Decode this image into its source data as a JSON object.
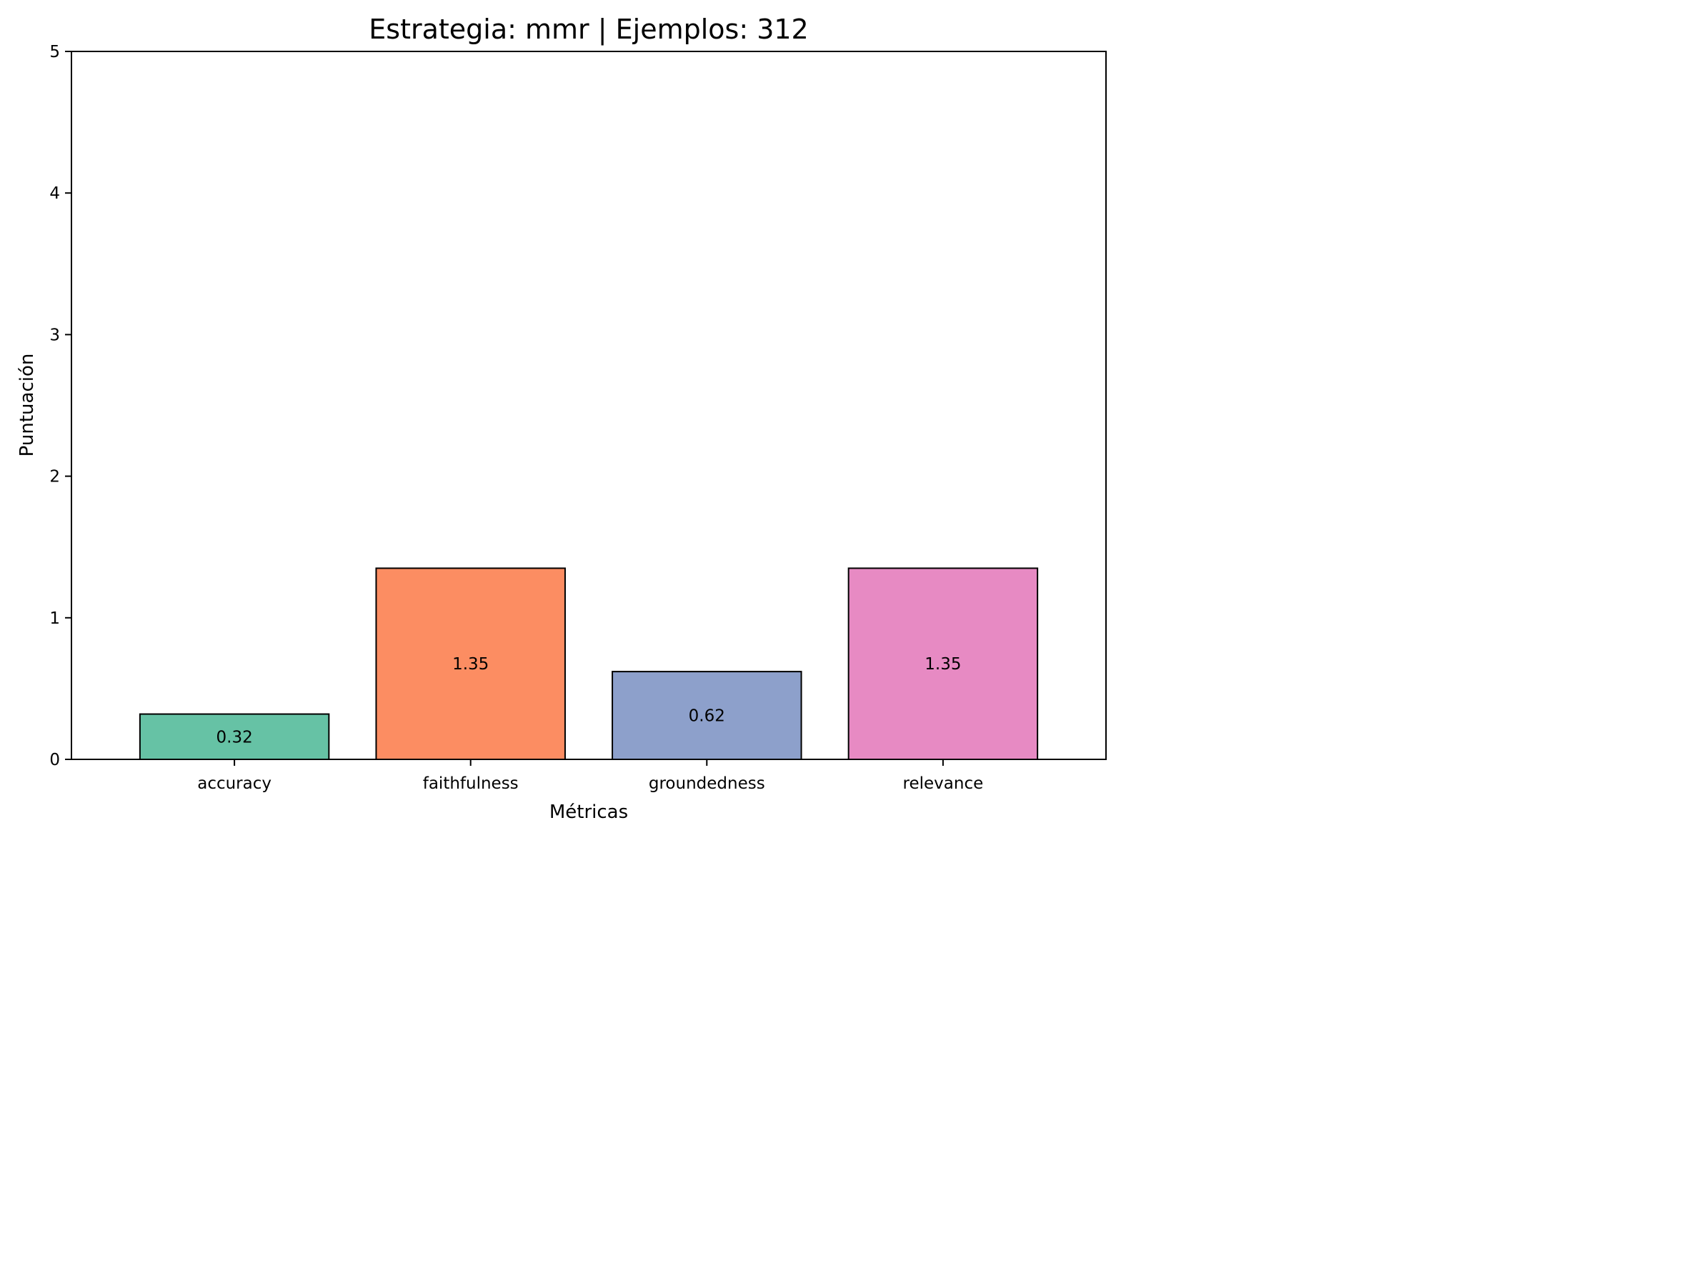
{
  "chart_data": {
    "type": "bar",
    "title": "Estrategia: mmr | Ejemplos: 312",
    "xlabel": "Métricas",
    "ylabel": "Puntuación",
    "categories": [
      "accuracy",
      "faithfulness",
      "groundedness",
      "relevance"
    ],
    "values": [
      0.32,
      1.35,
      0.62,
      1.35
    ],
    "value_labels": [
      "0.32",
      "1.35",
      "0.62",
      "1.35"
    ],
    "colors": [
      "#66c2a5",
      "#fc8d62",
      "#8da0cb",
      "#e78ac3"
    ],
    "ylim": [
      0,
      5
    ],
    "yticks": [
      0,
      1,
      2,
      3,
      4,
      5
    ],
    "ytick_labels": [
      "0",
      "1",
      "2",
      "3",
      "4",
      "5"
    ],
    "grid": false,
    "legend": false
  }
}
